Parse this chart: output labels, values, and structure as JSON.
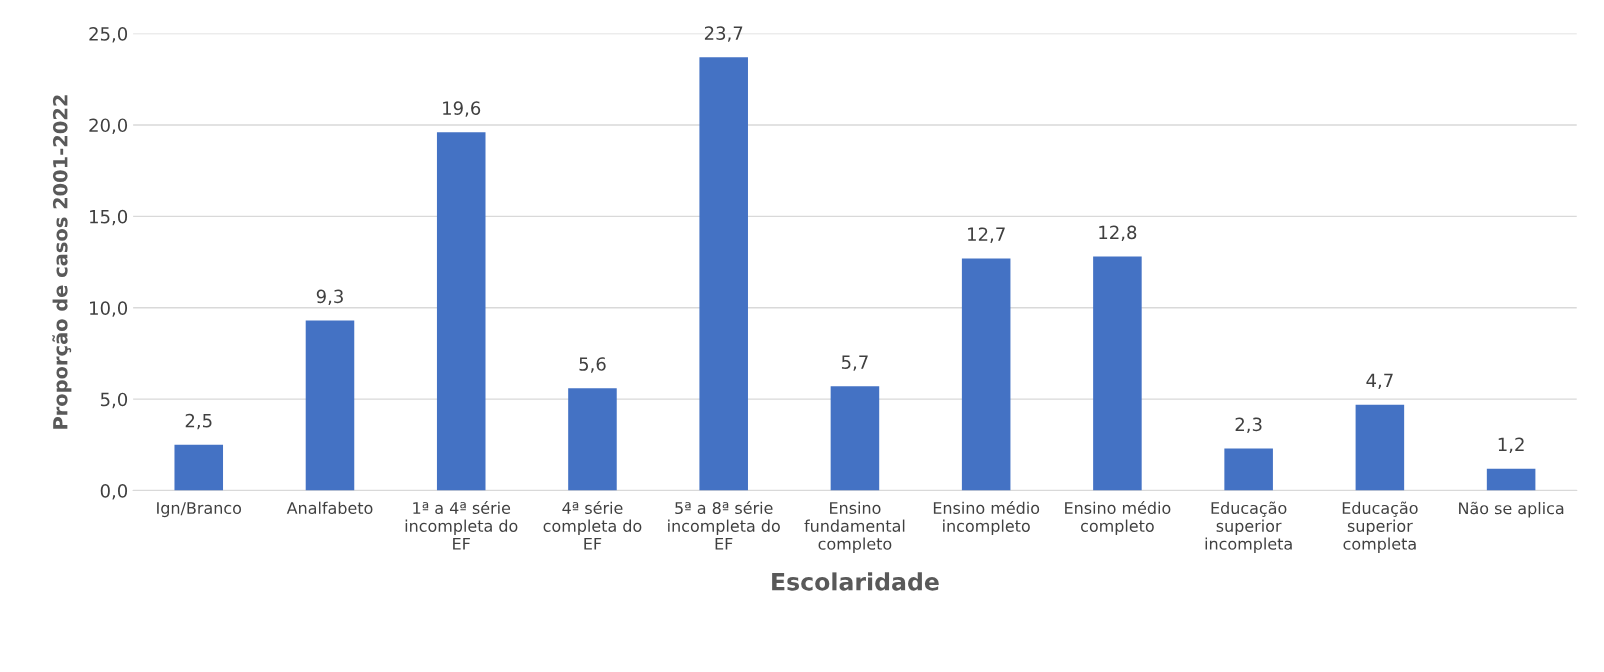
{
  "chart_data": {
    "type": "bar",
    "xlabel": "Escolaridade",
    "ylabel": "Proporção de casos 2001-2022",
    "categories": [
      "Ign/Branco",
      "Analfabeto",
      "1ª a 4ª série\nincompleta do\nEF",
      "4ª série\ncompleta do\nEF",
      "5ª a 8ª série\nincompleta do\nEF",
      "Ensino\nfundamental\ncompleto",
      "Ensino médio\nincompleto",
      "Ensino médio\ncompleto",
      "Educação\nsuperior\nincompleta",
      "Educação\nsuperior\ncompleta",
      "Não se aplica"
    ],
    "values": [
      2.5,
      9.3,
      19.6,
      5.6,
      23.7,
      5.7,
      12.7,
      12.8,
      2.3,
      4.7,
      1.2
    ],
    "value_labels": [
      "2,5",
      "9,3",
      "19,6",
      "5,6",
      "23,7",
      "5,7",
      "12,7",
      "12,8",
      "2,3",
      "4,7",
      "1,2"
    ],
    "color": "#4472c4",
    "ylim": [
      0,
      25
    ],
    "yticks": [
      {
        "value": 0,
        "label": "0,0"
      },
      {
        "value": 5,
        "label": "5,0"
      },
      {
        "value": 10,
        "label": "10,0"
      },
      {
        "value": 15,
        "label": "15,0"
      },
      {
        "value": 20,
        "label": "20,0"
      },
      {
        "value": 25,
        "label": "25,0"
      }
    ],
    "grid": "y",
    "legend": false
  }
}
